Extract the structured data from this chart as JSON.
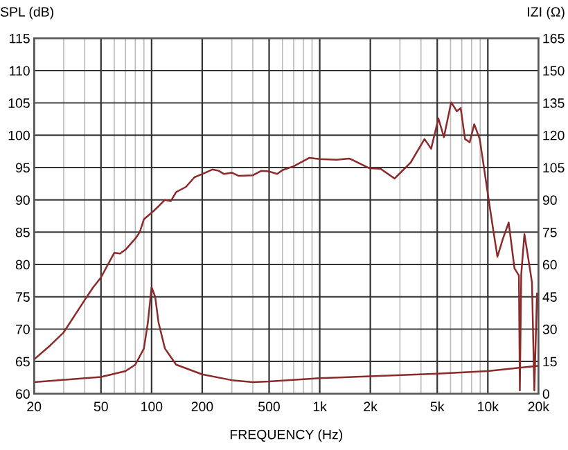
{
  "chart_data": {
    "type": "line",
    "xlabel": "FREQUENCY (Hz)",
    "ylabel": "SPL (dB)",
    "y2label": "IZI (Ω)",
    "log": "x",
    "grid": true,
    "xlim": [
      20,
      20000
    ],
    "xticks": [
      {
        "value": 20,
        "label": "20"
      },
      {
        "value": 30,
        "label": null
      },
      {
        "value": 40,
        "label": null
      },
      {
        "value": 50,
        "label": "50"
      },
      {
        "value": 60,
        "label": null
      },
      {
        "value": 70,
        "label": null
      },
      {
        "value": 80,
        "label": null
      },
      {
        "value": 90,
        "label": null
      },
      {
        "value": 100,
        "label": "100"
      },
      {
        "value": 200,
        "label": "200"
      },
      {
        "value": 300,
        "label": null
      },
      {
        "value": 400,
        "label": null
      },
      {
        "value": 500,
        "label": "500"
      },
      {
        "value": 600,
        "label": null
      },
      {
        "value": 700,
        "label": null
      },
      {
        "value": 800,
        "label": null
      },
      {
        "value": 900,
        "label": null
      },
      {
        "value": 1000,
        "label": "1k"
      },
      {
        "value": 2000,
        "label": "2k"
      },
      {
        "value": 3000,
        "label": null
      },
      {
        "value": 4000,
        "label": null
      },
      {
        "value": 5000,
        "label": "5k"
      },
      {
        "value": 6000,
        "label": null
      },
      {
        "value": 7000,
        "label": null
      },
      {
        "value": 8000,
        "label": null
      },
      {
        "value": 9000,
        "label": null
      },
      {
        "value": 10000,
        "label": "10k"
      },
      {
        "value": 20000,
        "label": "20k"
      }
    ],
    "ylim": [
      60,
      115
    ],
    "yticks": [
      60,
      65,
      70,
      75,
      80,
      85,
      90,
      95,
      100,
      105,
      110,
      115
    ],
    "y2lim": [
      0,
      165
    ],
    "y2ticks": [
      0,
      15,
      30,
      45,
      60,
      75,
      90,
      105,
      120,
      135,
      150,
      165
    ],
    "series": [
      {
        "color": "#8b2a2a",
        "x": [
          20,
          25,
          30,
          40,
          45,
          50,
          55,
          60,
          65,
          70,
          80,
          85,
          90,
          100,
          110,
          120,
          130,
          140,
          160,
          180,
          200,
          230,
          250,
          270,
          300,
          330,
          400,
          450,
          500,
          558,
          600,
          700,
          869,
          1000,
          1260,
          1500,
          1970,
          2300,
          2790,
          3480,
          4200,
          4600,
          5080,
          5480,
          6050,
          6540,
          6890,
          7320,
          7800,
          8300,
          8950,
          10200,
          10800,
          11400,
          12300,
          13300,
          14400,
          15300,
          15500,
          15800,
          16500,
          17700,
          18300,
          18900,
          19600,
          20000
        ],
        "values": [
          65.3,
          67.5,
          69.5,
          74.5,
          76.5,
          78,
          80,
          81.8,
          81.7,
          82.3,
          84,
          85,
          87,
          88,
          89,
          90,
          89.8,
          91.2,
          92,
          93.5,
          94,
          94.7,
          94.5,
          94,
          94.2,
          93.7,
          93.8,
          94.5,
          94.4,
          94,
          94.6,
          95.2,
          96.5,
          96.3,
          96.2,
          96.4,
          94.9,
          94.8,
          93.3,
          95.8,
          99.4,
          97.9,
          102.6,
          99.7,
          105.1,
          103.7,
          104.2,
          99.4,
          98.9,
          101.7,
          99.4,
          89.4,
          85.1,
          81.2,
          84,
          86.5,
          79.4,
          78.3,
          60.5,
          78.5,
          84.7,
          79.7,
          77.2,
          60.5,
          75.5,
          75.5
        ]
      },
      {
        "color": "#8b2a2a",
        "axis": "y2",
        "x": [
          20,
          50,
          70,
          80,
          90,
          95,
          100,
          105,
          110,
          120,
          140,
          200,
          300,
          400,
          500,
          1000,
          2000,
          5000,
          10000,
          15000,
          20000
        ],
        "values": [
          5.4,
          7.8,
          10.5,
          13.5,
          21,
          33,
          49.5,
          45,
          33,
          21,
          13.5,
          9,
          6.3,
          5.4,
          5.7,
          7.2,
          8.1,
          9.3,
          10.5,
          12,
          13
        ]
      }
    ]
  }
}
